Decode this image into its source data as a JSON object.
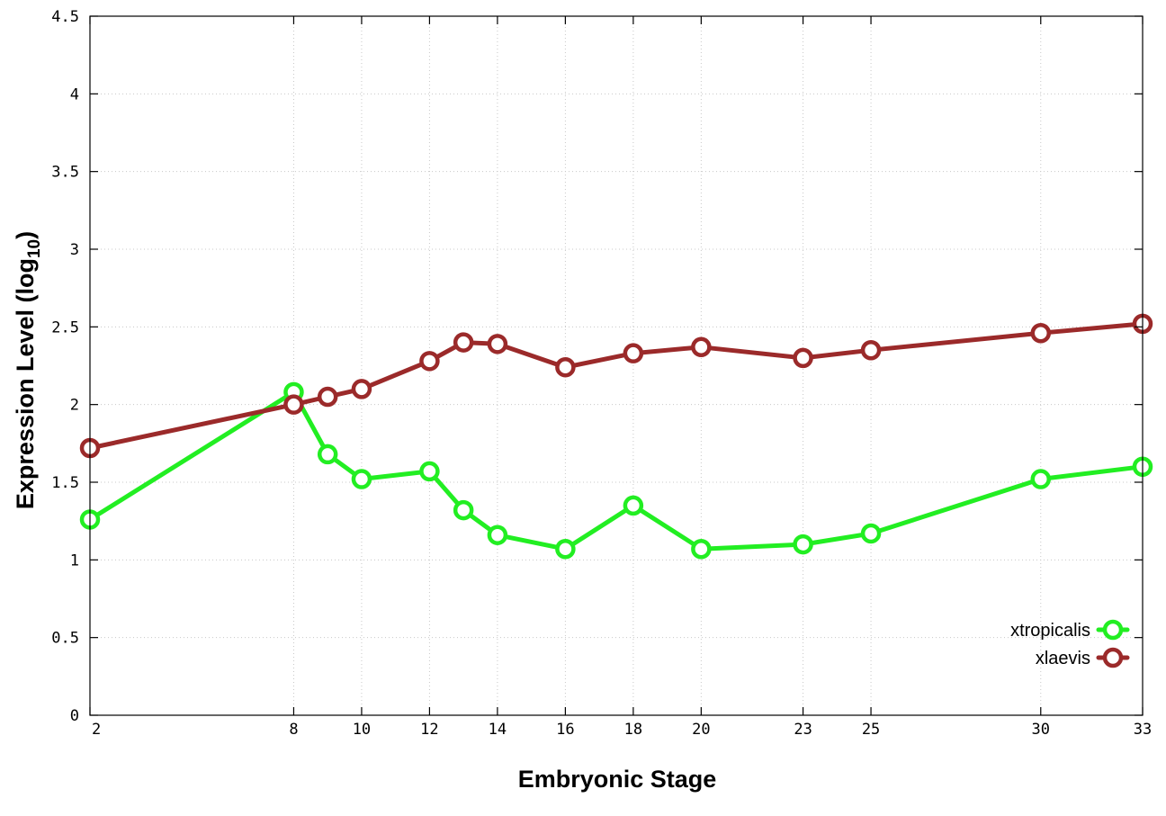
{
  "chart_data": {
    "type": "line",
    "title": "",
    "xlabel": "Embryonic Stage",
    "ylabel_main": "Expression Level (log",
    "ylabel_sub": "10",
    "ylabel_close": ")",
    "x": [
      2,
      8,
      9,
      10,
      12,
      13,
      14,
      16,
      18,
      20,
      23,
      25,
      30,
      33
    ],
    "x_ticks": [
      2,
      8,
      10,
      12,
      14,
      16,
      18,
      20,
      23,
      25,
      30,
      33
    ],
    "x_tick_labels": [
      "2",
      "8",
      "10",
      "12",
      "14",
      "16",
      "18",
      "20",
      "23",
      "25",
      "30",
      "33"
    ],
    "y_ticks": [
      0,
      0.5,
      1,
      1.5,
      2,
      2.5,
      3,
      3.5,
      4,
      4.5
    ],
    "y_tick_labels": [
      "0",
      "0.5",
      "1",
      "1.5",
      "2",
      "2.5",
      "3",
      "3.5",
      "4",
      "4.5"
    ],
    "xlim": [
      2,
      33
    ],
    "ylim": [
      0,
      4.5
    ],
    "grid": true,
    "legend_position": "bottom-right",
    "series": [
      {
        "name": "xtropicalis",
        "color": "#22ee22",
        "values": [
          1.26,
          2.08,
          1.68,
          1.52,
          1.57,
          1.32,
          1.16,
          1.07,
          1.35,
          1.07,
          1.1,
          1.17,
          1.52,
          1.6
        ]
      },
      {
        "name": "xlaevis",
        "color": "#9b2a2a",
        "values": [
          1.72,
          2.0,
          2.05,
          2.1,
          2.28,
          2.4,
          2.39,
          2.24,
          2.33,
          2.37,
          2.3,
          2.35,
          2.46,
          2.52
        ]
      }
    ]
  }
}
